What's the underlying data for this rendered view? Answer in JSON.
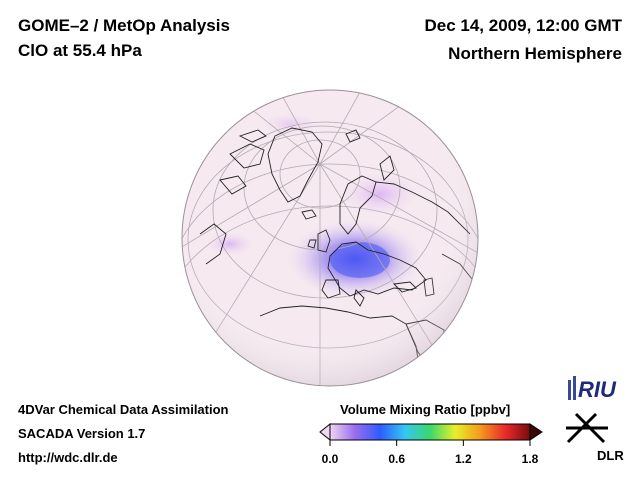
{
  "header": {
    "title": "GOME–2 / MetOp Analysis",
    "species": "ClO at 55.4 hPa",
    "datetime": "Dec 14, 2009, 12:00 GMT",
    "region": "Northern Hemisphere"
  },
  "footer": {
    "line1": "4DVar Chemical Data Assimilation",
    "line2": "SACADA Version 1.7",
    "url": "http://wdc.dlr.de"
  },
  "colorbar": {
    "title": "Volume Mixing Ratio [ppbv]",
    "ticks": [
      {
        "label": "0.0",
        "value": 0.0
      },
      {
        "label": "0.6",
        "value": 0.6
      },
      {
        "label": "1.2",
        "value": 1.2
      },
      {
        "label": "1.8",
        "value": 1.8
      }
    ],
    "min": 0.0,
    "max": 1.8,
    "colors": [
      "#f1d7ef",
      "#9b6cf0",
      "#2f5cff",
      "#34c7f5",
      "#3ad86a",
      "#e8ef2a",
      "#f59a1d",
      "#ea2b2b",
      "#7a0b0b"
    ]
  },
  "logos": {
    "riu": "RIU",
    "dlr": "DLR"
  },
  "map": {
    "background_color": "#f7edf1",
    "anomaly_color": "#5a5df2"
  }
}
